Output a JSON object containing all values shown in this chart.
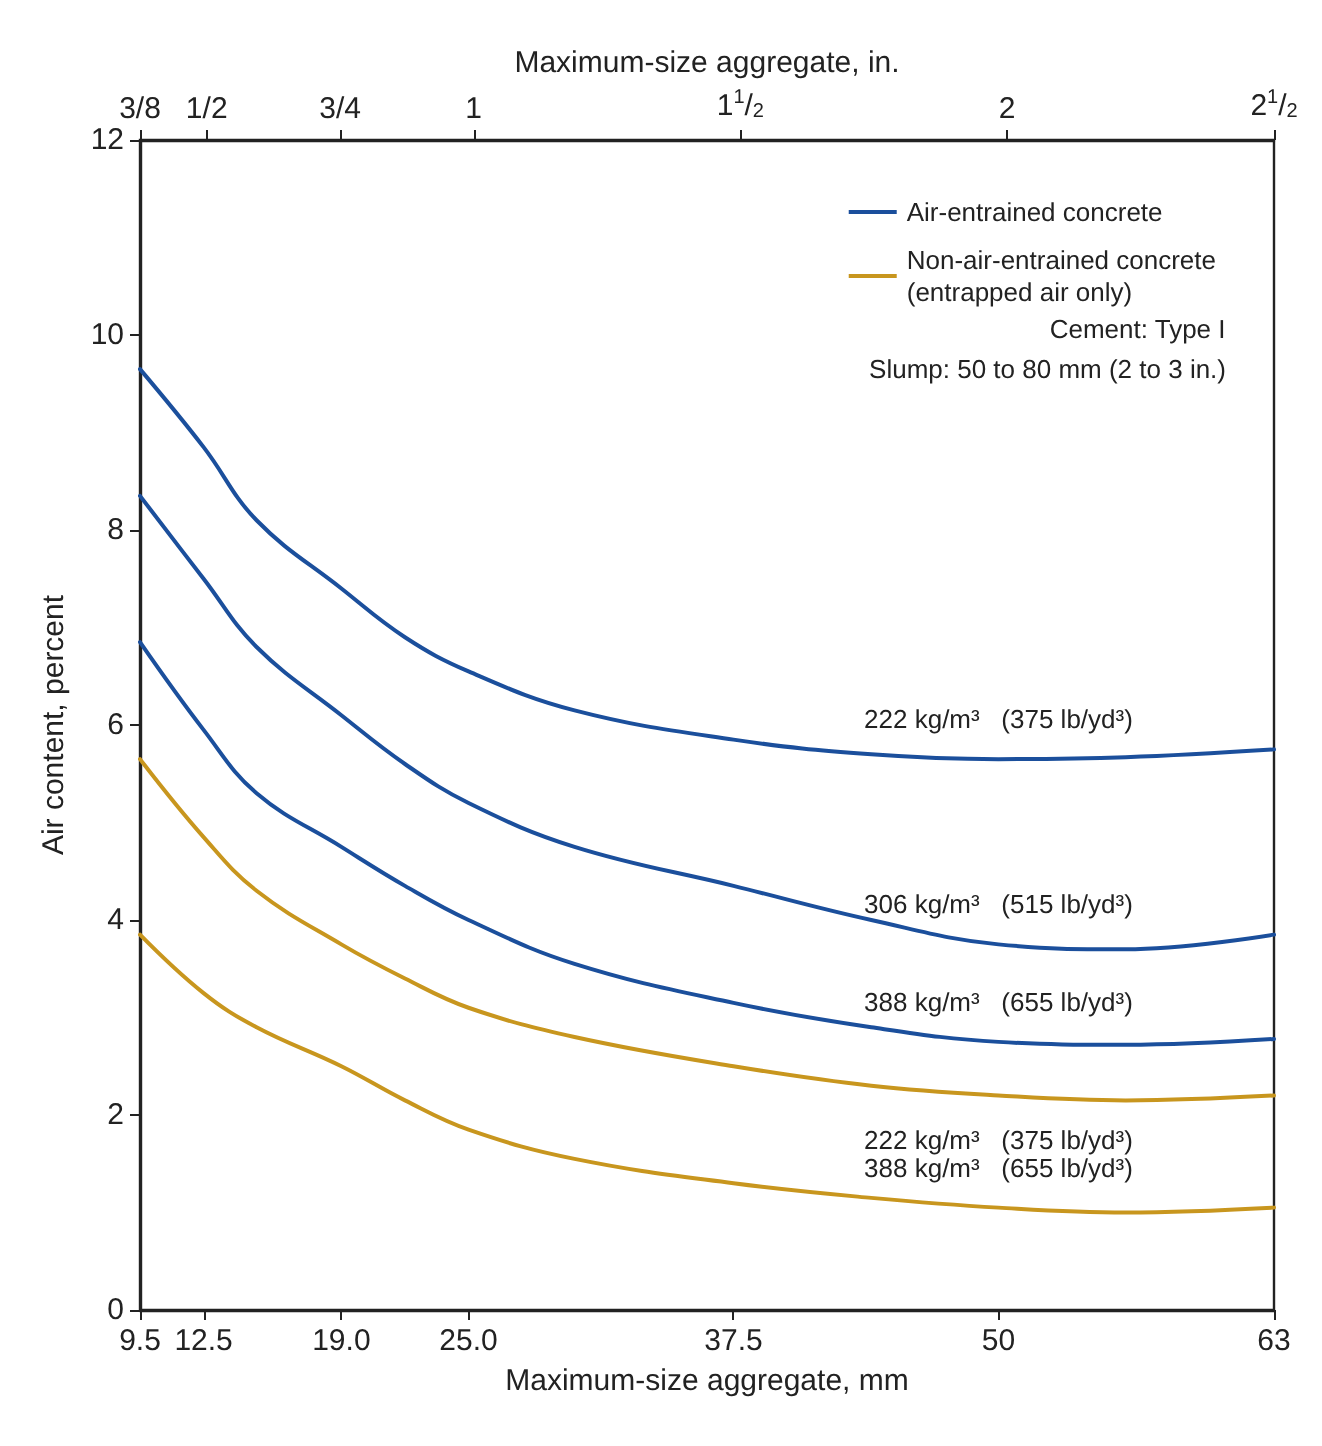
{
  "chart_data": {
    "type": "line",
    "xlabel": "Maximum-size aggregate, mm",
    "x2label": "Maximum-size aggregate, in.",
    "ylabel": "Air content, percent",
    "x": [
      9.5,
      12.5,
      15,
      19,
      22,
      25,
      30,
      37.5,
      44,
      50,
      56,
      63
    ],
    "series": [
      {
        "name": "Air-entrained concrete",
        "color": "#1b4f9c",
        "values": [
          9.65,
          8.85,
          8.1,
          7.4,
          6.9,
          6.55,
          6.15,
          5.85,
          5.7,
          5.65,
          5.67,
          5.75
        ]
      },
      {
        "color": "#1b4f9c",
        "values": [
          8.35,
          7.5,
          6.8,
          6.1,
          5.6,
          5.2,
          4.75,
          4.35,
          4.0,
          3.75,
          3.7,
          3.85
        ]
      },
      {
        "color": "#1b4f9c",
        "values": [
          6.85,
          5.95,
          5.3,
          4.75,
          4.35,
          4.0,
          3.55,
          3.15,
          2.9,
          2.75,
          2.72,
          2.78
        ]
      },
      {
        "name": "Non-air-entrained concrete\n(entrapped air only)",
        "color": "#c8961e",
        "values": [
          5.65,
          4.85,
          4.3,
          3.75,
          3.4,
          3.1,
          2.8,
          2.5,
          2.3,
          2.2,
          2.15,
          2.2
        ]
      },
      {
        "color": "#c8961e",
        "values": [
          3.85,
          3.25,
          2.9,
          2.5,
          2.15,
          1.85,
          1.55,
          1.3,
          1.15,
          1.05,
          1.0,
          1.05
        ]
      }
    ],
    "xlim": [
      9.5,
      63
    ],
    "xticks": [
      {
        "value": 9.5,
        "label": "9.5"
      },
      {
        "value": 12.5,
        "label": "12.5"
      },
      {
        "value": 19,
        "label": "19.0"
      },
      {
        "value": 25,
        "label": "25.0"
      },
      {
        "value": 37.5,
        "label": "37.5"
      },
      50,
      63
    ],
    "x2lim": [
      0.375,
      2.5
    ],
    "x2ticks": [
      {
        "value": 0.375,
        "label": "3/8"
      },
      {
        "value": 0.5,
        "label": "1/2"
      },
      {
        "value": 0.75,
        "label": "3/4"
      },
      1,
      {
        "value": 1.5,
        "label": "1$^{1}$/$_{2}$"
      },
      2,
      {
        "value": 2.5,
        "label": "2$^{1}$/$_{2}$"
      }
    ],
    "ylim": [
      0,
      12
    ],
    "yticks": [
      0,
      2,
      4,
      6,
      8,
      10,
      12
    ],
    "annotations": [
      "Cement: Type I",
      "Slump: 50 to 80 mm (2 to 3 in.)",
      "222 kg/m³   (375 lb/yd³)",
      "306 kg/m³   (515 lb/yd³)",
      "388 kg/m³   (655 lb/yd³)",
      "222 kg/m³   (375 lb/yd³)",
      "388 kg/m³   (655 lb/yd³)"
    ],
    "grid": false,
    "legend": "top right",
    "marker": "none",
    "line_style": "solid"
  }
}
